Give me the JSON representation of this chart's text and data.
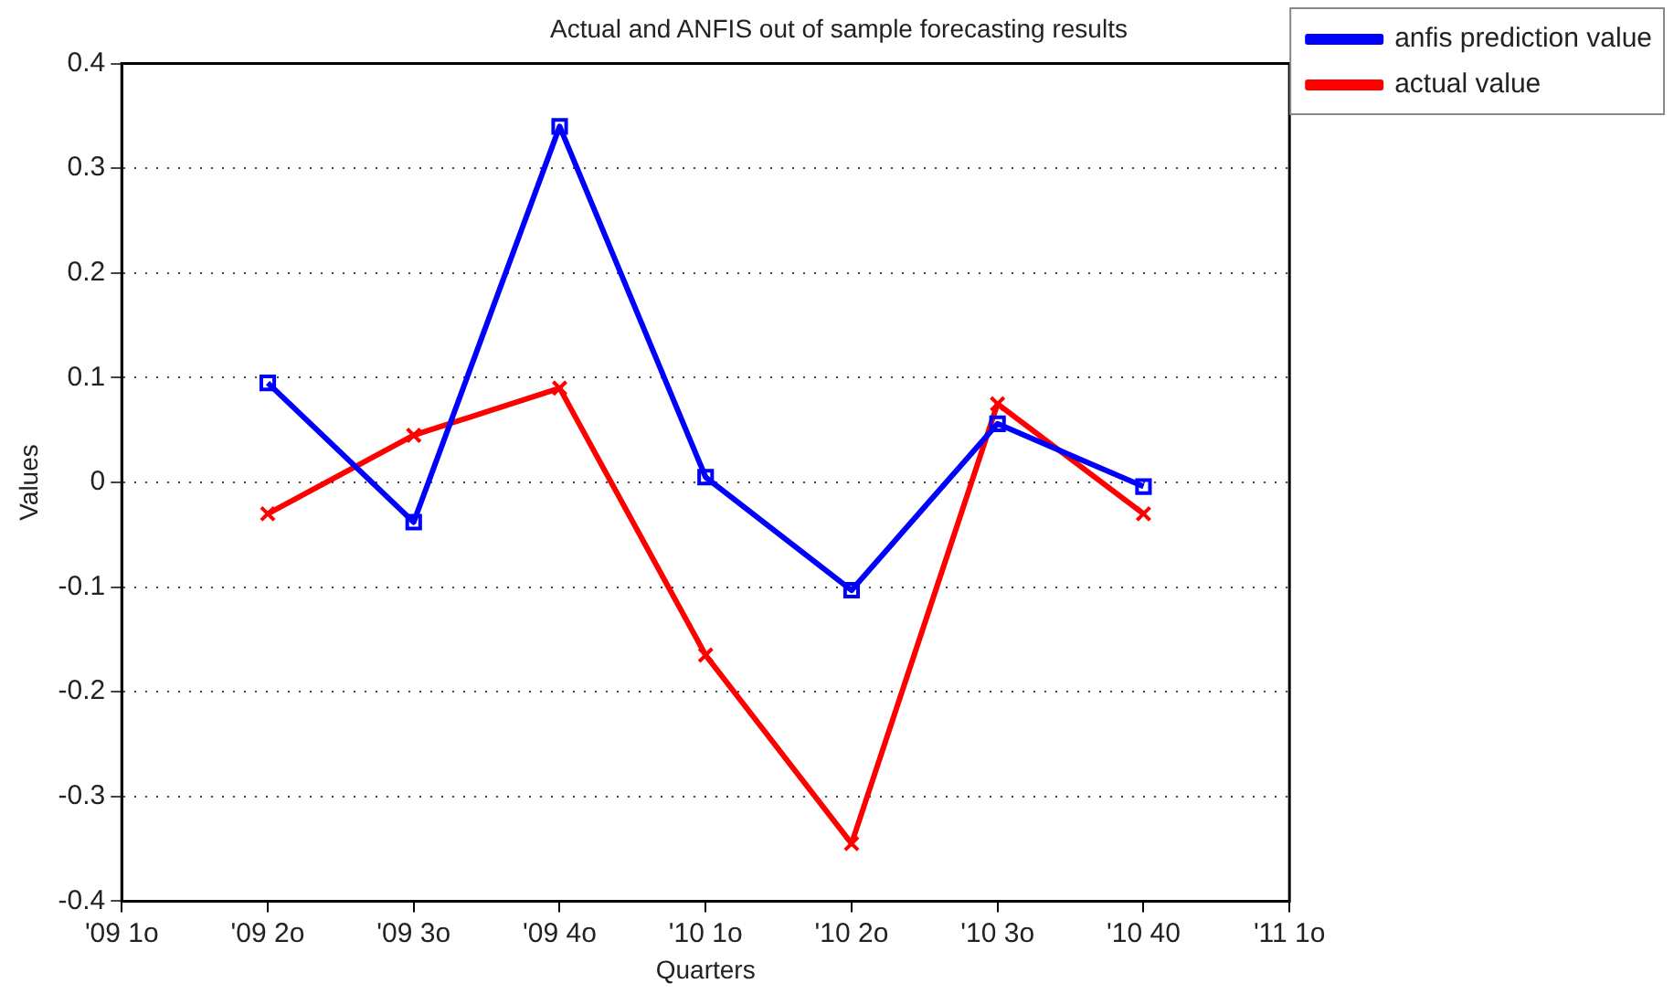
{
  "chart_data": {
    "type": "line",
    "title": "Actual and ANFIS out of sample forecasting results",
    "xlabel": "Quarters",
    "ylabel": "Values",
    "categories": [
      "'09 1o",
      "'09 2o",
      "'09 3o",
      "'09 4o",
      "'10 1o",
      "'10 2o",
      "'10 3o",
      "'10 40",
      "'11 1o"
    ],
    "series": [
      {
        "name": "anfis prediction value",
        "color": "#0000ff",
        "marker": "square",
        "values": [
          null,
          0.095,
          -0.038,
          0.34,
          0.005,
          -0.103,
          0.056,
          -0.004,
          null
        ]
      },
      {
        "name": "actual value",
        "color": "#ff0000",
        "marker": "cross",
        "values": [
          null,
          -0.03,
          0.045,
          0.09,
          -0.165,
          -0.345,
          0.075,
          -0.03,
          null
        ]
      }
    ],
    "ylim": [
      -0.4,
      0.4
    ],
    "yticks": [
      -0.4,
      -0.3,
      -0.2,
      -0.1,
      0,
      0.1,
      0.2,
      0.3,
      0.4
    ],
    "grid": "y",
    "line_style": "solid",
    "legend": "top right"
  }
}
